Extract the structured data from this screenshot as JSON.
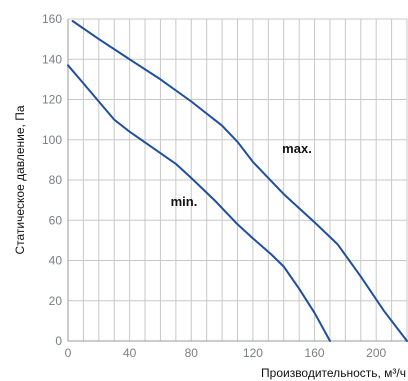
{
  "chart_data": {
    "type": "line",
    "xlabel": "Производительность, м³/ч",
    "ylabel": "Статическое давление, Па",
    "xlim": [
      0,
      220
    ],
    "ylim": [
      0,
      160
    ],
    "x_ticks": [
      0,
      40,
      80,
      120,
      160,
      200
    ],
    "y_ticks": [
      0,
      20,
      40,
      60,
      80,
      100,
      120,
      140,
      160
    ],
    "grid": true,
    "colors": {
      "line": "#1f4f9e",
      "grid": "#c8c8c8",
      "axis": "#9a9a9a"
    },
    "series": [
      {
        "name": "max.",
        "points": [
          [
            3,
            159
          ],
          [
            20,
            150
          ],
          [
            40,
            140
          ],
          [
            60,
            130
          ],
          [
            80,
            119
          ],
          [
            100,
            107
          ],
          [
            110,
            99
          ],
          [
            120,
            89
          ],
          [
            140,
            73
          ],
          [
            160,
            59
          ],
          [
            175,
            48
          ],
          [
            190,
            32
          ],
          [
            205,
            15
          ],
          [
            220,
            0
          ]
        ]
      },
      {
        "name": "min.",
        "points": [
          [
            0,
            137
          ],
          [
            10,
            128
          ],
          [
            20,
            119
          ],
          [
            30,
            110
          ],
          [
            40,
            104
          ],
          [
            55,
            96
          ],
          [
            70,
            88
          ],
          [
            80,
            81
          ],
          [
            95,
            70
          ],
          [
            110,
            58
          ],
          [
            120,
            51
          ],
          [
            132,
            43
          ],
          [
            140,
            37
          ],
          [
            150,
            26
          ],
          [
            160,
            14
          ],
          [
            170,
            0
          ]
        ]
      }
    ]
  }
}
